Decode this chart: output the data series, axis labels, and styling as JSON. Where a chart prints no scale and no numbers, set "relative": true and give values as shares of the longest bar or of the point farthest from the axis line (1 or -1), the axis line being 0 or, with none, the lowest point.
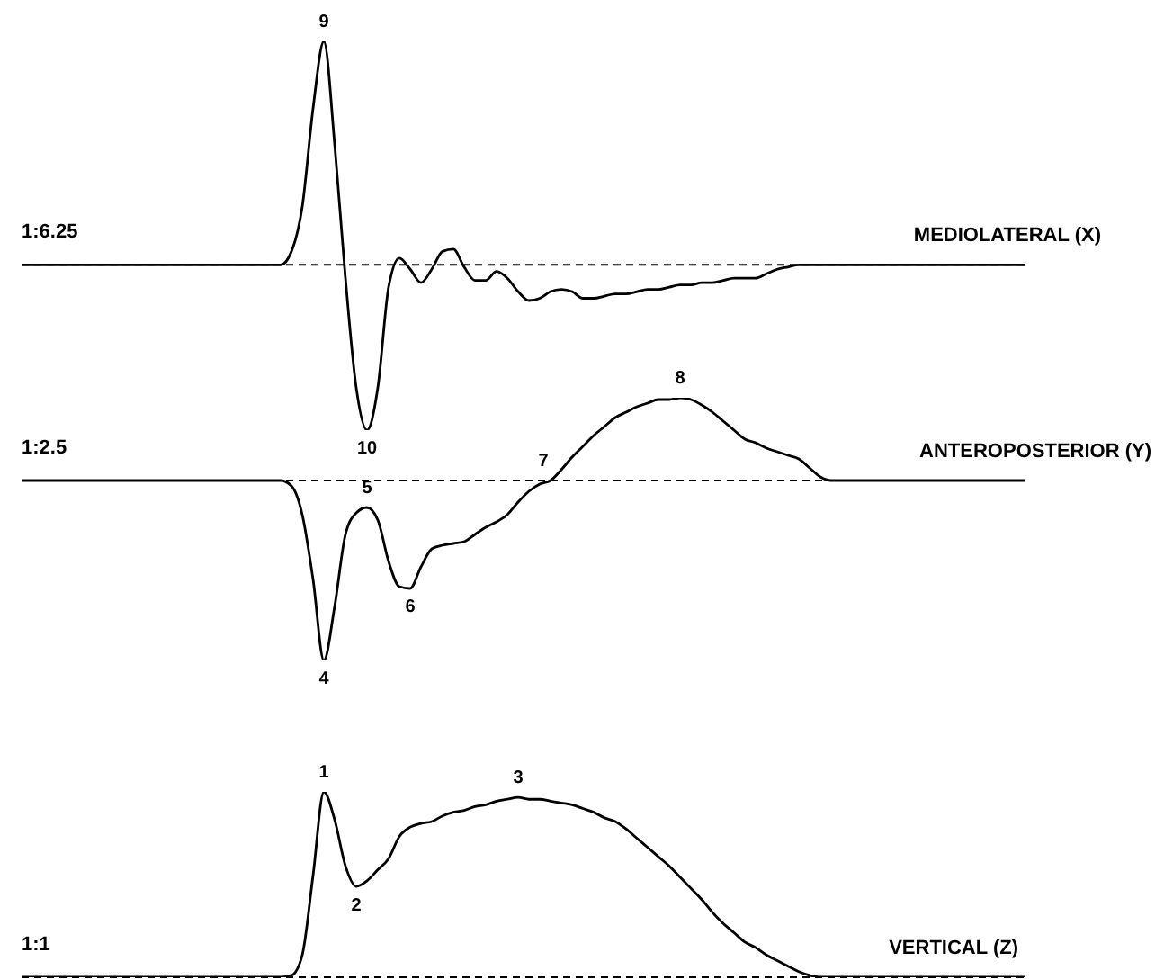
{
  "chart_data": [
    {
      "type": "line",
      "title": "MEDIOLATERAL (X)",
      "ylabel": "1:6.25",
      "relative": true,
      "tick_labels": false,
      "categories": [
        null,
        null,
        null,
        null,
        null,
        null,
        null,
        null,
        null,
        null,
        null,
        null,
        null,
        null,
        null,
        null,
        null,
        null,
        null,
        null,
        null,
        null,
        null,
        null,
        null,
        null,
        null,
        null,
        null,
        null,
        null,
        null,
        null,
        null,
        null,
        null,
        null,
        null,
        null,
        null,
        null,
        null,
        null,
        null,
        null,
        null,
        null,
        null,
        null,
        null,
        null,
        null,
        null,
        null,
        null,
        null,
        null,
        null,
        null,
        null,
        null,
        null,
        null,
        null,
        null,
        null,
        null,
        null,
        null,
        null,
        null,
        null,
        null,
        null,
        null,
        null,
        null,
        null,
        null,
        null,
        null,
        null,
        null,
        null,
        null,
        null,
        null,
        null,
        null,
        null,
        null,
        null,
        null,
        null
      ],
      "series": [
        {
          "color": "#000000",
          "values": [
            0,
            0,
            0,
            0,
            0,
            0,
            0,
            0,
            0,
            0,
            0,
            0,
            0,
            0,
            0,
            0,
            0,
            0,
            0,
            0,
            0,
            0,
            0,
            0,
            0,
            0.06,
            0.26,
            0.7,
            1,
            0.54,
            -0.06,
            -0.55,
            -0.74,
            -0.55,
            -0.1,
            0.03,
            -0.02,
            -0.08,
            -0.02,
            0.06,
            0.07,
            -0.01,
            -0.07,
            -0.07,
            -0.03,
            -0.06,
            -0.12,
            -0.16,
            -0.15,
            -0.12,
            -0.11,
            -0.12,
            -0.15,
            -0.15,
            -0.14,
            -0.13,
            -0.13,
            -0.12,
            -0.11,
            -0.11,
            -0.1,
            -0.09,
            -0.09,
            -0.08,
            -0.08,
            -0.07,
            -0.06,
            -0.06,
            -0.06,
            -0.04,
            -0.02,
            -0.01,
            0,
            0,
            0,
            0,
            0,
            0,
            0,
            0,
            0,
            0,
            0,
            0,
            0,
            0,
            0,
            0,
            0,
            0,
            0,
            0,
            0,
            0
          ]
        }
      ],
      "ref_lines": [
        {
          "axis": "y",
          "value": 0,
          "line_style": "dashed",
          "color": "#000000"
        }
      ],
      "annotations": [
        {
          "text": "9",
          "y": 1
        },
        {
          "text": "10",
          "y": -0.74
        }
      ]
    },
    {
      "type": "line",
      "title": "ANTEROPOSTERIOR (Y)",
      "ylabel": "1:2.5",
      "relative": true,
      "tick_labels": false,
      "categories": [
        null,
        null,
        null,
        null,
        null,
        null,
        null,
        null,
        null,
        null,
        null,
        null,
        null,
        null,
        null,
        null,
        null,
        null,
        null,
        null,
        null,
        null,
        null,
        null,
        null,
        null,
        null,
        null,
        null,
        null,
        null,
        null,
        null,
        null,
        null,
        null,
        null,
        null,
        null,
        null,
        null,
        null,
        null,
        null,
        null,
        null,
        null,
        null,
        null,
        null,
        null,
        null,
        null,
        null,
        null,
        null,
        null,
        null,
        null,
        null,
        null,
        null,
        null,
        null,
        null,
        null,
        null,
        null,
        null,
        null,
        null,
        null,
        null,
        null,
        null,
        null,
        null,
        null,
        null,
        null,
        null,
        null,
        null,
        null,
        null,
        null,
        null,
        null,
        null,
        null,
        null,
        null,
        null,
        null
      ],
      "series": [
        {
          "color": "#000000",
          "values": [
            0,
            0,
            0,
            0,
            0,
            0,
            0,
            0,
            0,
            0,
            0,
            0,
            0,
            0,
            0,
            0,
            0,
            0,
            0,
            0,
            0,
            0,
            0,
            0,
            0,
            -0.03,
            -0.19,
            -0.55,
            -1,
            -0.7,
            -0.3,
            -0.18,
            -0.15,
            -0.22,
            -0.45,
            -0.59,
            -0.6,
            -0.48,
            -0.38,
            -0.36,
            -0.35,
            -0.34,
            -0.3,
            -0.26,
            -0.23,
            -0.19,
            -0.12,
            -0.06,
            -0.02,
            0,
            0.06,
            0.13,
            0.19,
            0.25,
            0.3,
            0.35,
            0.38,
            0.41,
            0.43,
            0.45,
            0.45,
            0.46,
            0.45,
            0.42,
            0.38,
            0.33,
            0.28,
            0.23,
            0.21,
            0.18,
            0.16,
            0.14,
            0.12,
            0.07,
            0.02,
            0,
            0,
            0,
            0,
            0,
            0,
            0,
            0,
            0,
            0,
            0,
            0,
            0,
            0,
            0,
            0,
            0,
            0,
            0
          ]
        }
      ],
      "ref_lines": [
        {
          "axis": "y",
          "value": 0,
          "line_style": "dashed",
          "color": "#000000"
        }
      ],
      "annotations": [
        {
          "text": "4",
          "y": -1
        },
        {
          "text": "5",
          "y": -0.15
        },
        {
          "text": "6",
          "y": -0.6
        },
        {
          "text": "7",
          "y": 0
        },
        {
          "text": "8",
          "y": 0.46
        }
      ]
    },
    {
      "type": "line",
      "title": "VERTICAL (Z)",
      "ylabel": "1:1",
      "relative": true,
      "tick_labels": false,
      "categories": [
        null,
        null,
        null,
        null,
        null,
        null,
        null,
        null,
        null,
        null,
        null,
        null,
        null,
        null,
        null,
        null,
        null,
        null,
        null,
        null,
        null,
        null,
        null,
        null,
        null,
        null,
        null,
        null,
        null,
        null,
        null,
        null,
        null,
        null,
        null,
        null,
        null,
        null,
        null,
        null,
        null,
        null,
        null,
        null,
        null,
        null,
        null,
        null,
        null,
        null,
        null,
        null,
        null,
        null,
        null,
        null,
        null,
        null,
        null,
        null,
        null,
        null,
        null,
        null,
        null,
        null,
        null,
        null,
        null,
        null,
        null,
        null,
        null,
        null,
        null,
        null,
        null,
        null,
        null,
        null,
        null,
        null,
        null,
        null,
        null,
        null,
        null,
        null,
        null,
        null,
        null,
        null,
        null,
        null
      ],
      "series": [
        {
          "color": "#000000",
          "values": [
            0,
            0,
            0,
            0,
            0,
            0,
            0,
            0,
            0,
            0,
            0,
            0,
            0,
            0,
            0,
            0,
            0,
            0,
            0,
            0,
            0,
            0,
            0,
            0,
            0,
            0.01,
            0.12,
            0.55,
            1,
            0.85,
            0.6,
            0.49,
            0.52,
            0.58,
            0.64,
            0.76,
            0.81,
            0.83,
            0.84,
            0.87,
            0.89,
            0.9,
            0.92,
            0.93,
            0.95,
            0.96,
            0.97,
            0.96,
            0.96,
            0.95,
            0.94,
            0.93,
            0.91,
            0.89,
            0.86,
            0.84,
            0.8,
            0.75,
            0.7,
            0.65,
            0.6,
            0.54,
            0.48,
            0.42,
            0.35,
            0.29,
            0.24,
            0.19,
            0.16,
            0.12,
            0.09,
            0.06,
            0.03,
            0.01,
            0,
            0,
            0,
            0,
            0,
            0,
            0,
            0,
            0,
            0,
            0,
            0,
            0,
            0,
            0,
            0,
            0,
            0,
            0,
            0
          ]
        }
      ],
      "ref_lines": [
        {
          "axis": "y",
          "value": 0,
          "line_style": "dashed",
          "color": "#000000"
        }
      ],
      "annotations": [
        {
          "text": "1",
          "y": 1
        },
        {
          "text": "2",
          "y": 0.49
        },
        {
          "text": "3",
          "y": 0.97
        }
      ]
    }
  ]
}
